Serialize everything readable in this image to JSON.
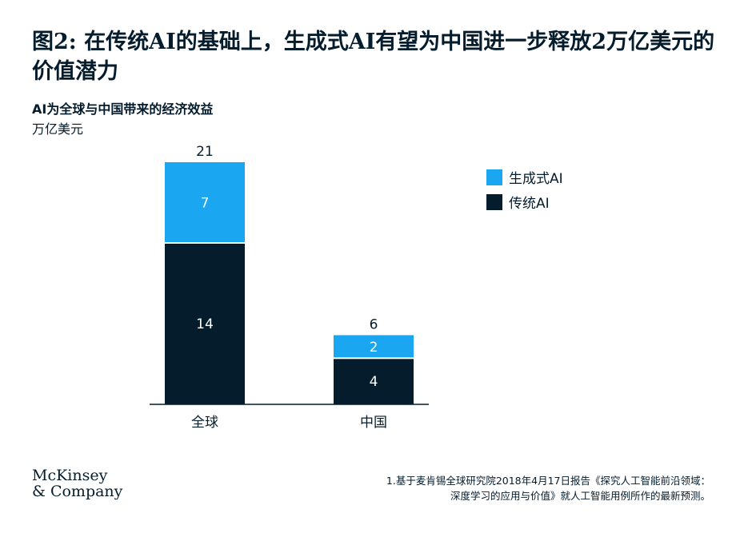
{
  "title": "图2: 在传统AI的基础上，生成式AI有望为中国进一步释放2万亿美元的价值潜力",
  "subtitle": "AI为全球与中国带来的经济效益",
  "unit": "万亿美元",
  "colors": {
    "generative": "#1aa6f0",
    "traditional": "#051c2c"
  },
  "legend": {
    "generative": "生成式AI",
    "traditional": "传统AI"
  },
  "chart_data": {
    "type": "bar",
    "stacked": true,
    "categories": [
      "全球",
      "中国"
    ],
    "series": [
      {
        "name": "传统AI",
        "values": [
          14,
          4
        ]
      },
      {
        "name": "生成式AI",
        "values": [
          7,
          2
        ]
      }
    ],
    "totals": [
      21,
      6
    ],
    "ylim": [
      0,
      21
    ]
  },
  "logo": {
    "line1": "McKinsey",
    "line2": "& Company"
  },
  "footnote": {
    "line1": "1.基于麦肯锡全球研究院2018年4月17日报告《探究人工智能前沿领域：",
    "line2": "深度学习的应用与价值》就人工智能用例所作的最新预测。"
  }
}
